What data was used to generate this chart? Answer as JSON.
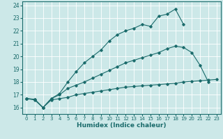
{
  "title": "",
  "xlabel": "Humidex (Indice chaleur)",
  "ylabel": "",
  "bg_color": "#cce8e8",
  "grid_color": "#ffffff",
  "line_color": "#1a6b6b",
  "xlim": [
    -0.5,
    23.5
  ],
  "ylim": [
    15.5,
    24.3
  ],
  "yticks": [
    16,
    17,
    18,
    19,
    20,
    21,
    22,
    23,
    24
  ],
  "xticks": [
    0,
    1,
    2,
    3,
    4,
    5,
    6,
    7,
    8,
    9,
    10,
    11,
    12,
    13,
    14,
    15,
    16,
    17,
    18,
    19,
    20,
    21,
    22,
    23
  ],
  "line1_x": [
    0,
    1,
    2,
    3,
    4,
    5,
    6,
    7,
    8,
    9,
    10,
    11,
    12,
    13,
    14,
    15,
    16,
    17,
    18,
    19
  ],
  "line1_y": [
    16.7,
    16.65,
    16.0,
    16.7,
    17.1,
    18.0,
    18.8,
    19.5,
    20.0,
    20.5,
    21.2,
    21.7,
    22.0,
    22.2,
    22.5,
    22.35,
    23.15,
    23.3,
    23.7,
    22.5
  ],
  "line2_x": [
    0,
    1,
    2,
    3,
    4,
    5,
    6,
    7,
    8,
    9,
    10,
    11,
    12,
    13,
    14,
    15,
    16,
    17,
    18,
    19,
    20,
    21,
    22
  ],
  "line2_y": [
    16.7,
    16.65,
    16.0,
    16.7,
    17.0,
    17.5,
    17.75,
    18.0,
    18.3,
    18.6,
    18.9,
    19.2,
    19.5,
    19.7,
    19.9,
    20.1,
    20.3,
    20.6,
    20.8,
    20.7,
    20.3,
    19.3,
    18.0
  ],
  "line3_x": [
    0,
    1,
    2,
    3,
    4,
    5,
    6,
    7,
    8,
    9,
    10,
    11,
    12,
    13,
    14,
    15,
    16,
    17,
    18,
    19,
    20,
    21,
    22,
    23
  ],
  "line3_y": [
    16.7,
    16.6,
    16.0,
    16.6,
    16.7,
    16.8,
    17.0,
    17.1,
    17.2,
    17.3,
    17.4,
    17.5,
    17.6,
    17.65,
    17.7,
    17.75,
    17.8,
    17.85,
    17.9,
    18.0,
    18.05,
    18.1,
    18.15,
    18.2
  ],
  "figwidth": 3.2,
  "figheight": 2.0,
  "dpi": 100
}
